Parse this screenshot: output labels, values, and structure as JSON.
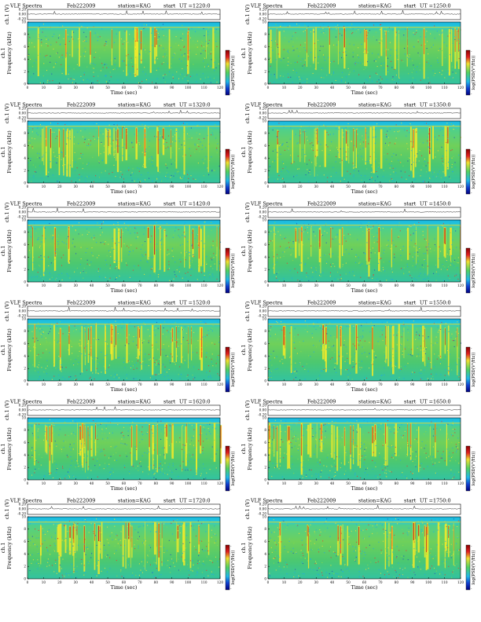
{
  "common": {
    "title": "VLF Spectra",
    "date": "Feb222009",
    "station": "station=KAG",
    "start_label": "start",
    "ch_label": "ch.1 (V)",
    "ylabel": "Frequency (kHz)",
    "xlabel": "Time (sec)",
    "cbar_label": "log(PSD(V²/Hz))",
    "ch_ticks": [
      "0.20",
      "0.00",
      "-0.20"
    ],
    "freq_ticks": [
      "0",
      "2",
      "4",
      "6",
      "8",
      "10"
    ],
    "cbar_ticks": [
      "-",
      "-"
    ]
  },
  "panels": [
    {
      "ut": "UT =1220:0"
    },
    {
      "ut": "UT =1250:0"
    },
    {
      "ut": "UT =1320:0"
    },
    {
      "ut": "UT =1350:0"
    },
    {
      "ut": "UT =1420:0"
    },
    {
      "ut": "UT =1450:0"
    },
    {
      "ut": "UT =1520:0"
    },
    {
      "ut": "UT =1550:0"
    },
    {
      "ut": "UT =1620:0"
    },
    {
      "ut": "UT =1650:0"
    },
    {
      "ut": "UT =1720:0"
    },
    {
      "ut": "UT =1750:0"
    }
  ],
  "chart_data": [
    {
      "type": "heatmap",
      "title": "VLF Spectra Feb222009 station=KAG start UT =1220:0",
      "xlabel": "Time (sec)",
      "ylabel": "Frequency (kHz)",
      "xlim": [
        0,
        120
      ],
      "ylim": [
        0,
        10
      ],
      "x_ticks": [
        0,
        10,
        20,
        30,
        40,
        50,
        60,
        70,
        80,
        90,
        100,
        110,
        120
      ],
      "y_ticks": [
        0,
        2,
        4,
        6,
        8,
        10
      ],
      "colorbar": "log(PSD(V²/Hz))",
      "upper_panel": {
        "label": "ch.1 (V)",
        "ylim": [
          -0.2,
          0.2
        ],
        "ticks": [
          0.2,
          0.0,
          -0.2
        ]
      }
    },
    {
      "type": "heatmap",
      "title": "VLF Spectra Feb222009 station=KAG start UT =1250:0",
      "xlabel": "Time (sec)",
      "ylabel": "Frequency (kHz)",
      "xlim": [
        0,
        120
      ],
      "ylim": [
        0,
        10
      ],
      "x_ticks": [
        0,
        10,
        20,
        30,
        40,
        50,
        60,
        70,
        80,
        90,
        100,
        110,
        120
      ],
      "y_ticks": [
        0,
        2,
        4,
        6,
        8,
        10
      ],
      "colorbar": "log(PSD(V²/Hz))",
      "upper_panel": {
        "label": "ch.1 (V)",
        "ylim": [
          -0.2,
          0.2
        ],
        "ticks": [
          0.2,
          0.0,
          -0.2
        ]
      }
    },
    {
      "type": "heatmap",
      "title": "VLF Spectra Feb222009 station=KAG start UT =1320:0",
      "xlabel": "Time (sec)",
      "ylabel": "Frequency (kHz)",
      "xlim": [
        0,
        120
      ],
      "ylim": [
        0,
        10
      ],
      "x_ticks": [
        0,
        10,
        20,
        30,
        40,
        50,
        60,
        70,
        80,
        90,
        100,
        110,
        120
      ],
      "y_ticks": [
        0,
        2,
        4,
        6,
        8,
        10
      ],
      "colorbar": "log(PSD(V²/Hz))",
      "upper_panel": {
        "label": "ch.1 (V)",
        "ylim": [
          -0.2,
          0.2
        ],
        "ticks": [
          0.2,
          0.0,
          -0.2
        ]
      }
    },
    {
      "type": "heatmap",
      "title": "VLF Spectra Feb222009 station=KAG start UT =1350:0",
      "xlabel": "Time (sec)",
      "ylabel": "Frequency (kHz)",
      "xlim": [
        0,
        120
      ],
      "ylim": [
        0,
        10
      ],
      "x_ticks": [
        0,
        10,
        20,
        30,
        40,
        50,
        60,
        70,
        80,
        90,
        100,
        110,
        120
      ],
      "y_ticks": [
        0,
        2,
        4,
        6,
        8,
        10
      ],
      "colorbar": "log(PSD(V²/Hz))",
      "upper_panel": {
        "label": "ch.1 (V)",
        "ylim": [
          -0.2,
          0.2
        ],
        "ticks": [
          0.2,
          0.0,
          -0.2
        ]
      }
    },
    {
      "type": "heatmap",
      "title": "VLF Spectra Feb222009 station=KAG start UT =1420:0",
      "xlabel": "Time (sec)",
      "ylabel": "Frequency (kHz)",
      "xlim": [
        0,
        120
      ],
      "ylim": [
        0,
        10
      ],
      "x_ticks": [
        0,
        10,
        20,
        30,
        40,
        50,
        60,
        70,
        80,
        90,
        100,
        110,
        120
      ],
      "y_ticks": [
        0,
        2,
        4,
        6,
        8,
        10
      ],
      "colorbar": "log(PSD(V²/Hz))",
      "upper_panel": {
        "label": "ch.1 (V)",
        "ylim": [
          -0.2,
          0.2
        ],
        "ticks": [
          0.2,
          0.0,
          -0.2
        ]
      }
    },
    {
      "type": "heatmap",
      "title": "VLF Spectra Feb222009 station=KAG start UT =1450:0",
      "xlabel": "Time (sec)",
      "ylabel": "Frequency (kHz)",
      "xlim": [
        0,
        120
      ],
      "ylim": [
        0,
        10
      ],
      "x_ticks": [
        0,
        10,
        20,
        30,
        40,
        50,
        60,
        70,
        80,
        90,
        100,
        110,
        120
      ],
      "y_ticks": [
        0,
        2,
        4,
        6,
        8,
        10
      ],
      "colorbar": "log(PSD(V²/Hz))",
      "upper_panel": {
        "label": "ch.1 (V)",
        "ylim": [
          -0.2,
          0.2
        ],
        "ticks": [
          0.2,
          0.0,
          -0.2
        ]
      }
    },
    {
      "type": "heatmap",
      "title": "VLF Spectra Feb222009 station=KAG start UT =1520:0",
      "xlabel": "Time (sec)",
      "ylabel": "Frequency (kHz)",
      "xlim": [
        0,
        120
      ],
      "ylim": [
        0,
        10
      ],
      "x_ticks": [
        0,
        10,
        20,
        30,
        40,
        50,
        60,
        70,
        80,
        90,
        100,
        110,
        120
      ],
      "y_ticks": [
        0,
        2,
        4,
        6,
        8,
        10
      ],
      "colorbar": "log(PSD(V²/Hz))",
      "upper_panel": {
        "label": "ch.1 (V)",
        "ylim": [
          -0.2,
          0.2
        ],
        "ticks": [
          0.2,
          0.0,
          -0.2
        ]
      }
    },
    {
      "type": "heatmap",
      "title": "VLF Spectra Feb222009 station=KAG start UT =1550:0",
      "xlabel": "Time (sec)",
      "ylabel": "Frequency (kHz)",
      "xlim": [
        0,
        120
      ],
      "ylim": [
        0,
        10
      ],
      "x_ticks": [
        0,
        10,
        20,
        30,
        40,
        50,
        60,
        70,
        80,
        90,
        100,
        110,
        120
      ],
      "y_ticks": [
        0,
        2,
        4,
        6,
        8,
        10
      ],
      "colorbar": "log(PSD(V²/Hz))",
      "upper_panel": {
        "label": "ch.1 (V)",
        "ylim": [
          -0.2,
          0.2
        ],
        "ticks": [
          0.2,
          0.0,
          -0.2
        ]
      }
    },
    {
      "type": "heatmap",
      "title": "VLF Spectra Feb222009 station=KAG start UT =1620:0",
      "xlabel": "Time (sec)",
      "ylabel": "Frequency (kHz)",
      "xlim": [
        0,
        120
      ],
      "ylim": [
        0,
        10
      ],
      "x_ticks": [
        0,
        10,
        20,
        30,
        40,
        50,
        60,
        70,
        80,
        90,
        100,
        110,
        120
      ],
      "y_ticks": [
        0,
        2,
        4,
        6,
        8,
        10
      ],
      "colorbar": "log(PSD(V²/Hz))",
      "upper_panel": {
        "label": "ch.1 (V)",
        "ylim": [
          -0.2,
          0.2
        ],
        "ticks": [
          0.2,
          0.0,
          -0.2
        ]
      }
    },
    {
      "type": "heatmap",
      "title": "VLF Spectra Feb222009 station=KAG start UT =1650:0",
      "xlabel": "Time (sec)",
      "ylabel": "Frequency (kHz)",
      "xlim": [
        0,
        120
      ],
      "ylim": [
        0,
        10
      ],
      "x_ticks": [
        0,
        10,
        20,
        30,
        40,
        50,
        60,
        70,
        80,
        90,
        100,
        110,
        120
      ],
      "y_ticks": [
        0,
        2,
        4,
        6,
        8,
        10
      ],
      "colorbar": "log(PSD(V²/Hz))",
      "upper_panel": {
        "label": "ch.1 (V)",
        "ylim": [
          -0.2,
          0.2
        ],
        "ticks": [
          0.2,
          0.0,
          -0.2
        ]
      }
    },
    {
      "type": "heatmap",
      "title": "VLF Spectra Feb222009 station=KAG start UT =1720:0",
      "xlabel": "Time (sec)",
      "ylabel": "Frequency (kHz)",
      "xlim": [
        0,
        120
      ],
      "ylim": [
        0,
        10
      ],
      "x_ticks": [
        0,
        10,
        20,
        30,
        40,
        50,
        60,
        70,
        80,
        90,
        100,
        110,
        120
      ],
      "y_ticks": [
        0,
        2,
        4,
        6,
        8,
        10
      ],
      "colorbar": "log(PSD(V²/Hz))",
      "upper_panel": {
        "label": "ch.1 (V)",
        "ylim": [
          -0.2,
          0.2
        ],
        "ticks": [
          0.2,
          0.0,
          -0.2
        ]
      }
    },
    {
      "type": "heatmap",
      "title": "VLF Spectra Feb222009 station=KAG start UT =1750:0",
      "xlabel": "Time (sec)",
      "ylabel": "Frequency (kHz)",
      "xlim": [
        0,
        120
      ],
      "ylim": [
        0,
        10
      ],
      "x_ticks": [
        0,
        10,
        20,
        30,
        40,
        50,
        60,
        70,
        80,
        90,
        100,
        110,
        120
      ],
      "y_ticks": [
        0,
        2,
        4,
        6,
        8,
        10
      ],
      "colorbar": "log(PSD(V²/Hz))",
      "upper_panel": {
        "label": "ch.1 (V)",
        "ylim": [
          -0.2,
          0.2
        ],
        "ticks": [
          0.2,
          0.0,
          -0.2
        ]
      }
    }
  ]
}
